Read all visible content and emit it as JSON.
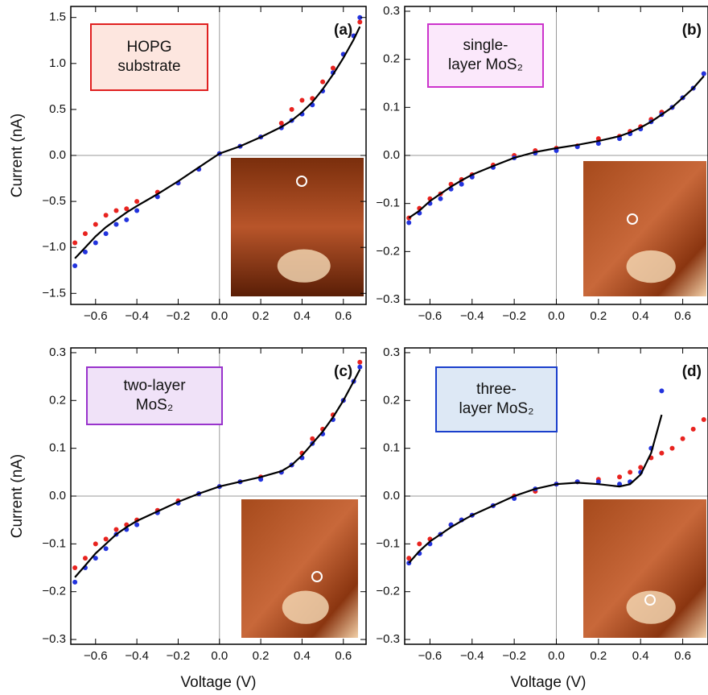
{
  "chart_data": [
    {
      "type": "scatter",
      "panel_label": "(a)",
      "box_label": [
        "HOPG",
        "substrate"
      ],
      "label_border": "#e02020",
      "label_fill": "#fde6df",
      "ylabel": "Current (nA)",
      "xlim": [
        -0.72,
        0.71
      ],
      "ylim": [
        -1.62,
        1.62
      ],
      "xticks": [
        {
          "value": -0.6,
          "label": "−0.6"
        },
        {
          "value": -0.4,
          "label": "−0.4"
        },
        {
          "value": -0.2,
          "label": "−0.2"
        },
        {
          "value": 0,
          "label": "0.0"
        },
        0.2,
        0.4,
        0.6
      ],
      "yticks": [
        {
          "value": -1.5,
          "label": "−1.5"
        },
        {
          "value": -1,
          "label": "−1.0"
        },
        {
          "value": -0.5,
          "label": "−0.5"
        },
        {
          "value": 0,
          "label": "0.0"
        },
        0.5,
        {
          "value": 1,
          "label": "1.0"
        },
        1.5
      ],
      "x": [
        -0.7,
        -0.65,
        -0.6,
        -0.55,
        -0.5,
        -0.45,
        -0.4,
        -0.3,
        -0.2,
        -0.1,
        0,
        0.1,
        0.2,
        0.3,
        0.35,
        0.4,
        0.45,
        0.5,
        0.55,
        0.6,
        0.65,
        0.68
      ],
      "series": [
        {
          "color": "#e8231f",
          "mode": "points",
          "values": [
            -0.95,
            -0.85,
            -0.75,
            -0.65,
            -0.6,
            -0.58,
            -0.5,
            -0.4,
            -0.3,
            -0.15,
            0.02,
            0.1,
            0.2,
            0.35,
            0.5,
            0.6,
            0.62,
            0.8,
            0.95,
            1.1,
            1.3,
            1.45
          ]
        },
        {
          "color": "#2233dd",
          "mode": "points",
          "values": [
            -1.2,
            -1.05,
            -0.95,
            -0.85,
            -0.75,
            -0.7,
            -0.6,
            -0.45,
            -0.3,
            -0.15,
            0.02,
            0.1,
            0.2,
            0.3,
            0.38,
            0.45,
            0.55,
            0.7,
            0.9,
            1.1,
            1.3,
            1.5
          ]
        },
        {
          "color": "#000000",
          "mode": "line",
          "values": [
            -1.12,
            -1.0,
            -0.88,
            -0.78,
            -0.7,
            -0.62,
            -0.55,
            -0.42,
            -0.28,
            -0.13,
            0.02,
            0.1,
            0.2,
            0.31,
            0.38,
            0.47,
            0.58,
            0.72,
            0.88,
            1.06,
            1.26,
            1.4
          ]
        }
      ]
    },
    {
      "type": "scatter",
      "panel_label": "(b)",
      "box_label": [
        "single-",
        "layer MoS₂"
      ],
      "label_border": "#cc33cc",
      "label_fill": "#fbe8fb",
      "xlim": [
        -0.72,
        0.72
      ],
      "ylim": [
        -0.31,
        0.31
      ],
      "xticks": [
        {
          "value": -0.6,
          "label": "−0.6"
        },
        {
          "value": -0.4,
          "label": "−0.4"
        },
        {
          "value": -0.2,
          "label": "−0.2"
        },
        {
          "value": 0,
          "label": "0.0"
        },
        0.2,
        0.4,
        0.6
      ],
      "yticks": [
        {
          "value": -0.3,
          "label": "−0.3"
        },
        {
          "value": -0.2,
          "label": "−0.2"
        },
        {
          "value": -0.1,
          "label": "−0.1"
        },
        {
          "value": 0,
          "label": "0.0"
        },
        0.1,
        0.2,
        0.3
      ],
      "x": [
        -0.7,
        -0.65,
        -0.6,
        -0.55,
        -0.5,
        -0.45,
        -0.4,
        -0.3,
        -0.2,
        -0.1,
        0,
        0.1,
        0.2,
        0.3,
        0.35,
        0.4,
        0.45,
        0.5,
        0.55,
        0.6,
        0.65,
        0.7
      ],
      "series": [
        {
          "color": "#e8231f",
          "mode": "points",
          "values": [
            -0.13,
            -0.11,
            -0.09,
            -0.08,
            -0.06,
            -0.05,
            -0.04,
            -0.02,
            0,
            0.01,
            0.015,
            0.02,
            0.035,
            0.04,
            0.05,
            0.06,
            0.075,
            0.09,
            0.1,
            0.12,
            0.14,
            0.17
          ]
        },
        {
          "color": "#2233dd",
          "mode": "points",
          "values": [
            -0.14,
            -0.12,
            -0.1,
            -0.09,
            -0.07,
            -0.06,
            -0.045,
            -0.025,
            -0.005,
            0.005,
            0.01,
            0.018,
            0.025,
            0.035,
            0.045,
            0.055,
            0.07,
            0.085,
            0.1,
            0.12,
            0.14,
            0.17
          ]
        },
        {
          "color": "#000000",
          "mode": "line",
          "values": [
            -0.13,
            -0.115,
            -0.095,
            -0.08,
            -0.065,
            -0.052,
            -0.04,
            -0.022,
            -0.005,
            0.007,
            0.015,
            0.022,
            0.03,
            0.04,
            0.048,
            0.058,
            0.07,
            0.085,
            0.1,
            0.12,
            0.14,
            0.165
          ]
        }
      ]
    },
    {
      "type": "scatter",
      "panel_label": "(c)",
      "box_label": [
        "two-layer",
        "MoS₂"
      ],
      "label_border": "#9933cc",
      "label_fill": "#f0e2f8",
      "xlabel": "Voltage (V)",
      "ylabel": "Current (nA)",
      "xlim": [
        -0.72,
        0.71
      ],
      "ylim": [
        -0.31,
        0.31
      ],
      "xticks": [
        {
          "value": -0.6,
          "label": "−0.6"
        },
        {
          "value": -0.4,
          "label": "−0.4"
        },
        {
          "value": -0.2,
          "label": "−0.2"
        },
        {
          "value": 0,
          "label": "0.0"
        },
        0.2,
        0.4,
        0.6
      ],
      "yticks": [
        {
          "value": -0.3,
          "label": "−0.3"
        },
        {
          "value": -0.2,
          "label": "−0.2"
        },
        {
          "value": -0.1,
          "label": "−0.1"
        },
        {
          "value": 0,
          "label": "0.0"
        },
        0.1,
        0.2,
        0.3
      ],
      "x": [
        -0.7,
        -0.65,
        -0.6,
        -0.55,
        -0.5,
        -0.45,
        -0.4,
        -0.3,
        -0.2,
        -0.1,
        0,
        0.1,
        0.2,
        0.3,
        0.35,
        0.4,
        0.45,
        0.5,
        0.55,
        0.6,
        0.65,
        0.68
      ],
      "series": [
        {
          "color": "#e8231f",
          "mode": "points",
          "values": [
            -0.15,
            -0.13,
            -0.1,
            -0.09,
            -0.07,
            -0.06,
            -0.05,
            -0.03,
            -0.01,
            0.005,
            0.02,
            0.03,
            0.04,
            0.05,
            0.065,
            0.09,
            0.12,
            0.14,
            0.17,
            0.2,
            0.24,
            0.28
          ]
        },
        {
          "color": "#2233dd",
          "mode": "points",
          "values": [
            -0.18,
            -0.15,
            -0.13,
            -0.11,
            -0.08,
            -0.07,
            -0.06,
            -0.035,
            -0.015,
            0.005,
            0.02,
            0.03,
            0.035,
            0.05,
            0.065,
            0.08,
            0.11,
            0.13,
            0.16,
            0.2,
            0.24,
            0.27
          ]
        },
        {
          "color": "#000000",
          "mode": "line",
          "values": [
            -0.17,
            -0.145,
            -0.12,
            -0.1,
            -0.08,
            -0.065,
            -0.052,
            -0.032,
            -0.012,
            0.005,
            0.02,
            0.03,
            0.04,
            0.052,
            0.065,
            0.085,
            0.11,
            0.135,
            0.165,
            0.2,
            0.24,
            0.265
          ]
        }
      ]
    },
    {
      "type": "scatter",
      "panel_label": "(d)",
      "box_label": [
        "three-",
        "layer MoS₂"
      ],
      "label_border": "#1a3fcc",
      "label_fill": "#dde8f5",
      "xlabel": "Voltage (V)",
      "xlim": [
        -0.72,
        0.72
      ],
      "ylim": [
        -0.31,
        0.31
      ],
      "xticks": [
        {
          "value": -0.6,
          "label": "−0.6"
        },
        {
          "value": -0.4,
          "label": "−0.4"
        },
        {
          "value": -0.2,
          "label": "−0.2"
        },
        {
          "value": 0,
          "label": "0.0"
        },
        0.2,
        0.4,
        0.6
      ],
      "yticks": [
        {
          "value": -0.3,
          "label": "−0.3"
        },
        {
          "value": -0.2,
          "label": "−0.2"
        },
        {
          "value": -0.1,
          "label": "−0.1"
        },
        {
          "value": 0,
          "label": "0.0"
        },
        0.1,
        0.2,
        0.3
      ],
      "x": [
        -0.7,
        -0.65,
        -0.6,
        -0.55,
        -0.5,
        -0.45,
        -0.4,
        -0.3,
        -0.2,
        -0.1,
        0,
        0.1,
        0.2,
        0.3,
        0.35,
        0.4,
        0.45,
        0.5,
        0.55,
        0.6,
        0.65,
        0.7
      ],
      "series": [
        {
          "color": "#e8231f",
          "mode": "points",
          "values": [
            -0.13,
            -0.1,
            -0.09,
            -0.08,
            -0.06,
            -0.05,
            -0.04,
            -0.02,
            0,
            0.01,
            0.025,
            0.03,
            0.035,
            0.04,
            0.05,
            0.06,
            0.08,
            0.09,
            0.1,
            0.12,
            0.14,
            0.16
          ]
        },
        {
          "color": "#2233dd",
          "mode": "points",
          "values": [
            -0.14,
            -0.12,
            -0.1,
            -0.08,
            -0.06,
            -0.05,
            -0.04,
            -0.02,
            -0.005,
            0.015,
            0.025,
            0.03,
            0.03,
            0.025,
            0.03,
            0.05,
            0.1,
            0.22,
            null,
            null,
            null,
            null
          ]
        },
        {
          "color": "#000000",
          "mode": "line",
          "values": [
            -0.14,
            -0.115,
            -0.095,
            -0.08,
            -0.065,
            -0.052,
            -0.04,
            -0.02,
            0,
            0.015,
            0.025,
            0.028,
            0.025,
            0.02,
            0.025,
            0.045,
            0.09,
            0.17,
            null,
            null,
            null,
            null
          ]
        }
      ]
    }
  ]
}
